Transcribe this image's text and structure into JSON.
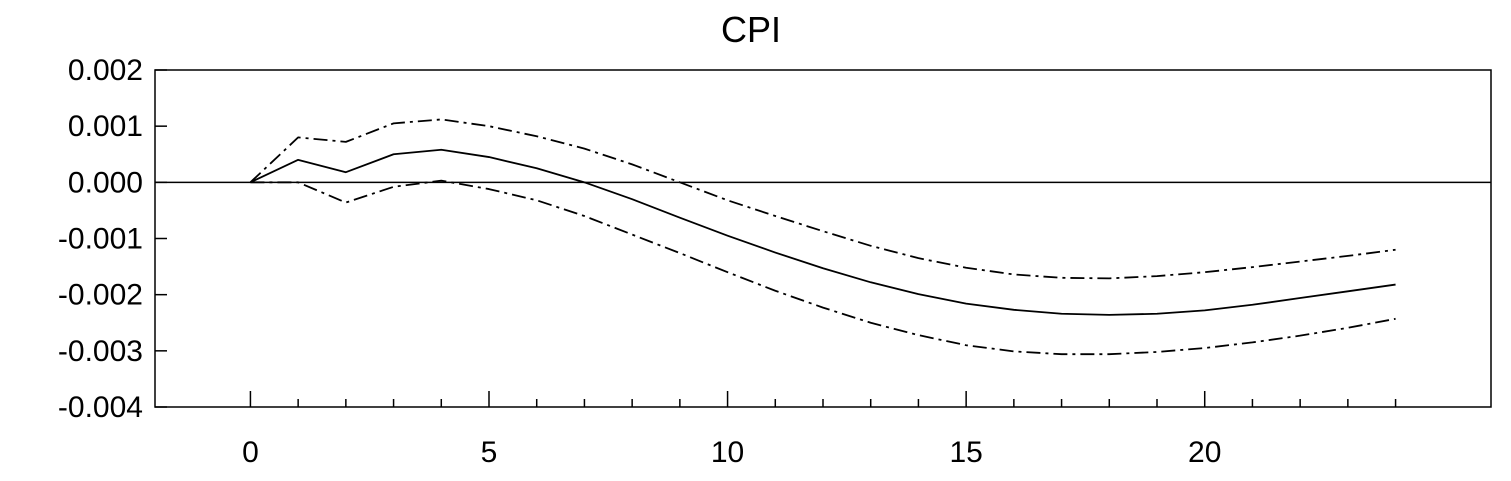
{
  "chart_data": {
    "type": "line",
    "title": "CPI",
    "xlabel": "",
    "ylabel": "",
    "xlim": [
      -2,
      26
    ],
    "ylim": [
      -0.004,
      0.002
    ],
    "x_ticks": [
      0,
      5,
      10,
      15,
      20
    ],
    "x_tick_labels": [
      "0",
      "5",
      "10",
      "15",
      "20"
    ],
    "x_minor_ticks": [
      1,
      2,
      3,
      4,
      6,
      7,
      8,
      9,
      11,
      12,
      13,
      14,
      16,
      17,
      18,
      19,
      21,
      22,
      23,
      24
    ],
    "y_ticks": [
      0.002,
      0.001,
      0.0,
      -0.001,
      -0.002,
      -0.003,
      -0.004
    ],
    "y_tick_labels": [
      "0.002",
      "0.001",
      "0.000",
      "-0.001",
      "-0.002",
      "-0.003",
      "-0.004"
    ],
    "zero_line": true,
    "grid": false,
    "legend": "none",
    "x": [
      0,
      1,
      2,
      3,
      4,
      5,
      6,
      7,
      8,
      9,
      10,
      11,
      12,
      13,
      14,
      15,
      16,
      17,
      18,
      19,
      20,
      21,
      22,
      23,
      24
    ],
    "series": [
      {
        "role": "response",
        "style": "solid",
        "color": "#000000",
        "values": [
          0.0,
          0.0004,
          0.00018,
          0.0005,
          0.00058,
          0.00045,
          0.00025,
          0.0,
          -0.0003,
          -0.00063,
          -0.00095,
          -0.00125,
          -0.00153,
          -0.00178,
          -0.00199,
          -0.00216,
          -0.00227,
          -0.00234,
          -0.00236,
          -0.00234,
          -0.00228,
          -0.00218,
          -0.00206,
          -0.00194,
          -0.00182
        ]
      },
      {
        "role": "upper-band",
        "style": "dash-dot",
        "color": "#000000",
        "values": [
          0.0,
          0.0008,
          0.00072,
          0.00105,
          0.00112,
          0.001,
          0.00082,
          0.0006,
          0.00032,
          0.0,
          -0.00032,
          -0.0006,
          -0.00087,
          -0.00113,
          -0.00135,
          -0.00152,
          -0.00164,
          -0.0017,
          -0.00171,
          -0.00167,
          -0.0016,
          -0.00151,
          -0.00141,
          -0.00131,
          -0.0012
        ]
      },
      {
        "role": "lower-band",
        "style": "dash-dot",
        "color": "#000000",
        "values": [
          0.0,
          0.0,
          -0.00036,
          -8e-05,
          3e-05,
          -0.00012,
          -0.00032,
          -0.0006,
          -0.00093,
          -0.00126,
          -0.0016,
          -0.00193,
          -0.00223,
          -0.0025,
          -0.00272,
          -0.0029,
          -0.00301,
          -0.00306,
          -0.00306,
          -0.00302,
          -0.00295,
          -0.00285,
          -0.00273,
          -0.00259,
          -0.00243
        ]
      }
    ]
  }
}
